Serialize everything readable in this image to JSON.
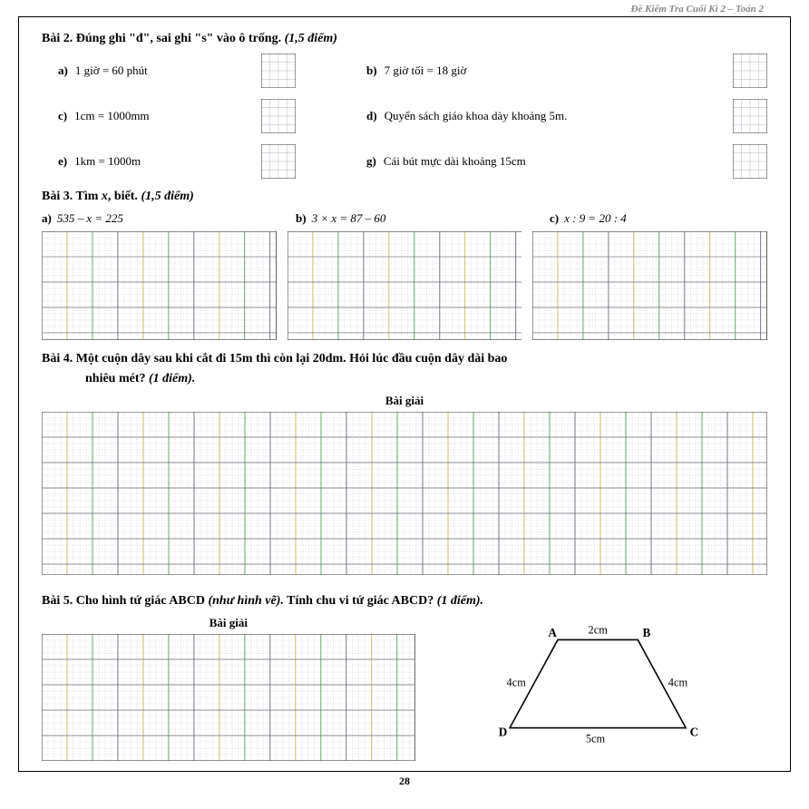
{
  "header": "Đề Kiểm Tra Cuối Kì 2 – Toán 2",
  "page_number": "28",
  "bai2": {
    "title_prefix": "Bài 2. Đúng ghi \"đ\", sai ghi \"s\"  vào ô trống. ",
    "title_points": "(1,5 điểm)",
    "items": [
      {
        "la": "a)",
        "ta": "1 giờ = 60 phút",
        "lb": "b)",
        "tb": "7 giờ tối = 18 giờ"
      },
      {
        "la": "c)",
        "ta": "1cm = 1000mm",
        "lb": "d)",
        "tb": "Quyển sách giáo khoa dày khoảng 5m."
      },
      {
        "la": "e)",
        "ta": "1km = 1000m",
        "lb": "g)",
        "tb": "Cái bút mực dài khoảng 15cm"
      }
    ]
  },
  "bai3": {
    "title_prefix": "Bài 3. Tìm ",
    "title_var": "x",
    "title_suffix": ", biết. ",
    "title_points": "(1,5 điểm)",
    "a_label": "a)",
    "a_text": "535 – x = 225",
    "b_label": "b)",
    "b_text": "3 × x = 87 – 60",
    "c_label": "c)",
    "c_text": "x : 9 = 20 : 4"
  },
  "bai4": {
    "line1": "Bài 4. Một cuộn dây sau khi cắt đi 15m thì còn lại 20dm. Hỏi lúc đầu cuộn dây dài bao",
    "line2": "nhiêu mét? ",
    "points": "(1 điểm).",
    "giai": "Bài giải"
  },
  "bai5": {
    "prefix": "Bài 5. Cho hình tứ giác ABCD ",
    "hint": "(như hình vẽ).",
    "suffix": " Tính chu vi tứ giác ABCD? ",
    "points": "(1 điểm).",
    "giai": "Bài giải",
    "labels": {
      "A": "A",
      "B": "B",
      "C": "C",
      "D": "D"
    },
    "sides": {
      "AB": "2cm",
      "BC": "4cm",
      "CD": "5cm",
      "DA": "4cm"
    }
  },
  "grid_style": {
    "fine_color": "#b8b8c8",
    "bold_color": "#6a6a7a",
    "accent1": "#c9b458",
    "accent2": "#5a9e5a",
    "border": "#555"
  }
}
